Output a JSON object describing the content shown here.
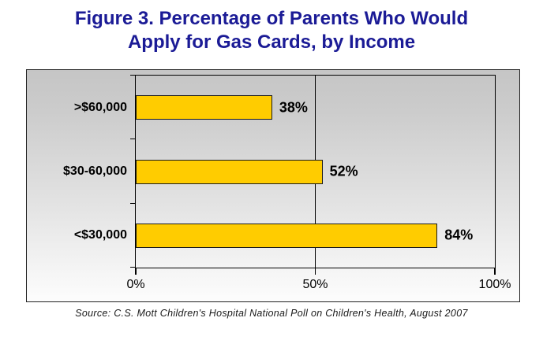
{
  "title": {
    "line1": "Figure 3. Percentage of Parents Who Would",
    "line2": "Apply for Gas Cards, by Income"
  },
  "source": "Source: C.S. Mott Children's Hospital National Poll on Children's Health, August 2007",
  "colors": {
    "title_text": "#1b1b96",
    "bar_fill": "#FFCC00",
    "bar_border": "#1a1a1a",
    "plot_bg_top": "#c5c5c5",
    "plot_bg_bottom": "#fdfdfd"
  },
  "chart_data": {
    "type": "bar",
    "orientation": "horizontal",
    "title": "Figure 3. Percentage of Parents Who Would Apply for Gas Cards, by Income",
    "categories": [
      ">$60,000",
      "$30-60,000",
      "<$30,000"
    ],
    "values": [
      38,
      52,
      84
    ],
    "value_labels": [
      "38%",
      "52%",
      "84%"
    ],
    "xlabel": "",
    "ylabel": "",
    "xlim": [
      0,
      100
    ],
    "x_ticks": [
      0,
      50,
      100
    ],
    "x_tick_labels": [
      "0%",
      "50%",
      "100%"
    ],
    "gridlines": [
      50,
      100
    ],
    "legend": "none",
    "source": "Source: C.S. Mott Children's Hospital National Poll on Children's Health, August 2007"
  }
}
